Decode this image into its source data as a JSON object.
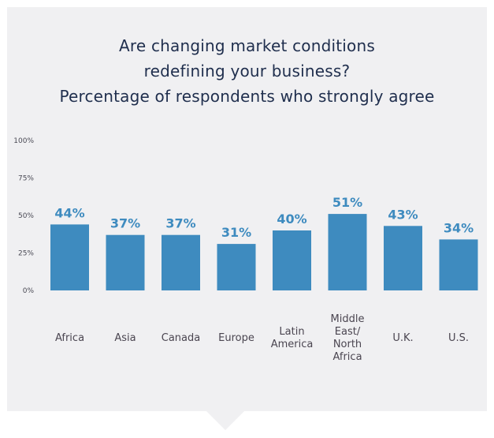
{
  "chart_data": {
    "type": "bar",
    "title": [
      "Are changing market conditions",
      "redefining your business?",
      "Percentage of respondents who strongly agree"
    ],
    "categories": [
      [
        "Africa"
      ],
      [
        "Asia"
      ],
      [
        "Canada"
      ],
      [
        "Europe"
      ],
      [
        "Latin",
        "America"
      ],
      [
        "Middle",
        "East/",
        "North",
        "Africa"
      ],
      [
        "U.K."
      ],
      [
        "U.S."
      ]
    ],
    "values": [
      44,
      37,
      37,
      31,
      40,
      51,
      43,
      34
    ],
    "data_labels": [
      "44%",
      "37%",
      "37%",
      "31%",
      "40%",
      "51%",
      "43%",
      "34%"
    ],
    "yticks": [
      0,
      25,
      50,
      75,
      100
    ],
    "ytick_labels": [
      "0%",
      "25%",
      "50%",
      "75%",
      "100%"
    ],
    "ylim": [
      0,
      100
    ],
    "xlabel": "",
    "ylabel": "",
    "grid": false,
    "legend": "none",
    "colors": {
      "bar": "#3e8bbf",
      "data_label": "#3e8bbf",
      "title": "#1f2e4d",
      "panel": "#f0f0f2"
    }
  }
}
